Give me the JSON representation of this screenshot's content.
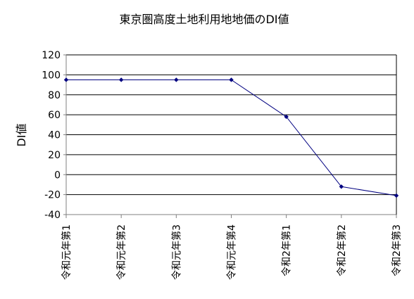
{
  "chart_data": {
    "type": "line",
    "title": "東京圏高度土地利用地地価のDI値",
    "xlabel": "",
    "ylabel": "DI値",
    "categories": [
      "令和元年第1",
      "令和元年第2",
      "令和元年第3",
      "令和元年第4",
      "令和2年第1",
      "令和2年第2",
      "令和2年第3"
    ],
    "series": [
      {
        "values": [
          95,
          95,
          95,
          95,
          58,
          -12,
          -21
        ]
      }
    ],
    "ylim": [
      -40,
      120
    ],
    "yticks": [
      -40,
      -20,
      0,
      20,
      40,
      60,
      80,
      100,
      120
    ],
    "grid": true,
    "legend": "none",
    "colors": {
      "line": "#000080",
      "marker": "#000080",
      "grid": "#000000",
      "axis": "#808080"
    }
  }
}
